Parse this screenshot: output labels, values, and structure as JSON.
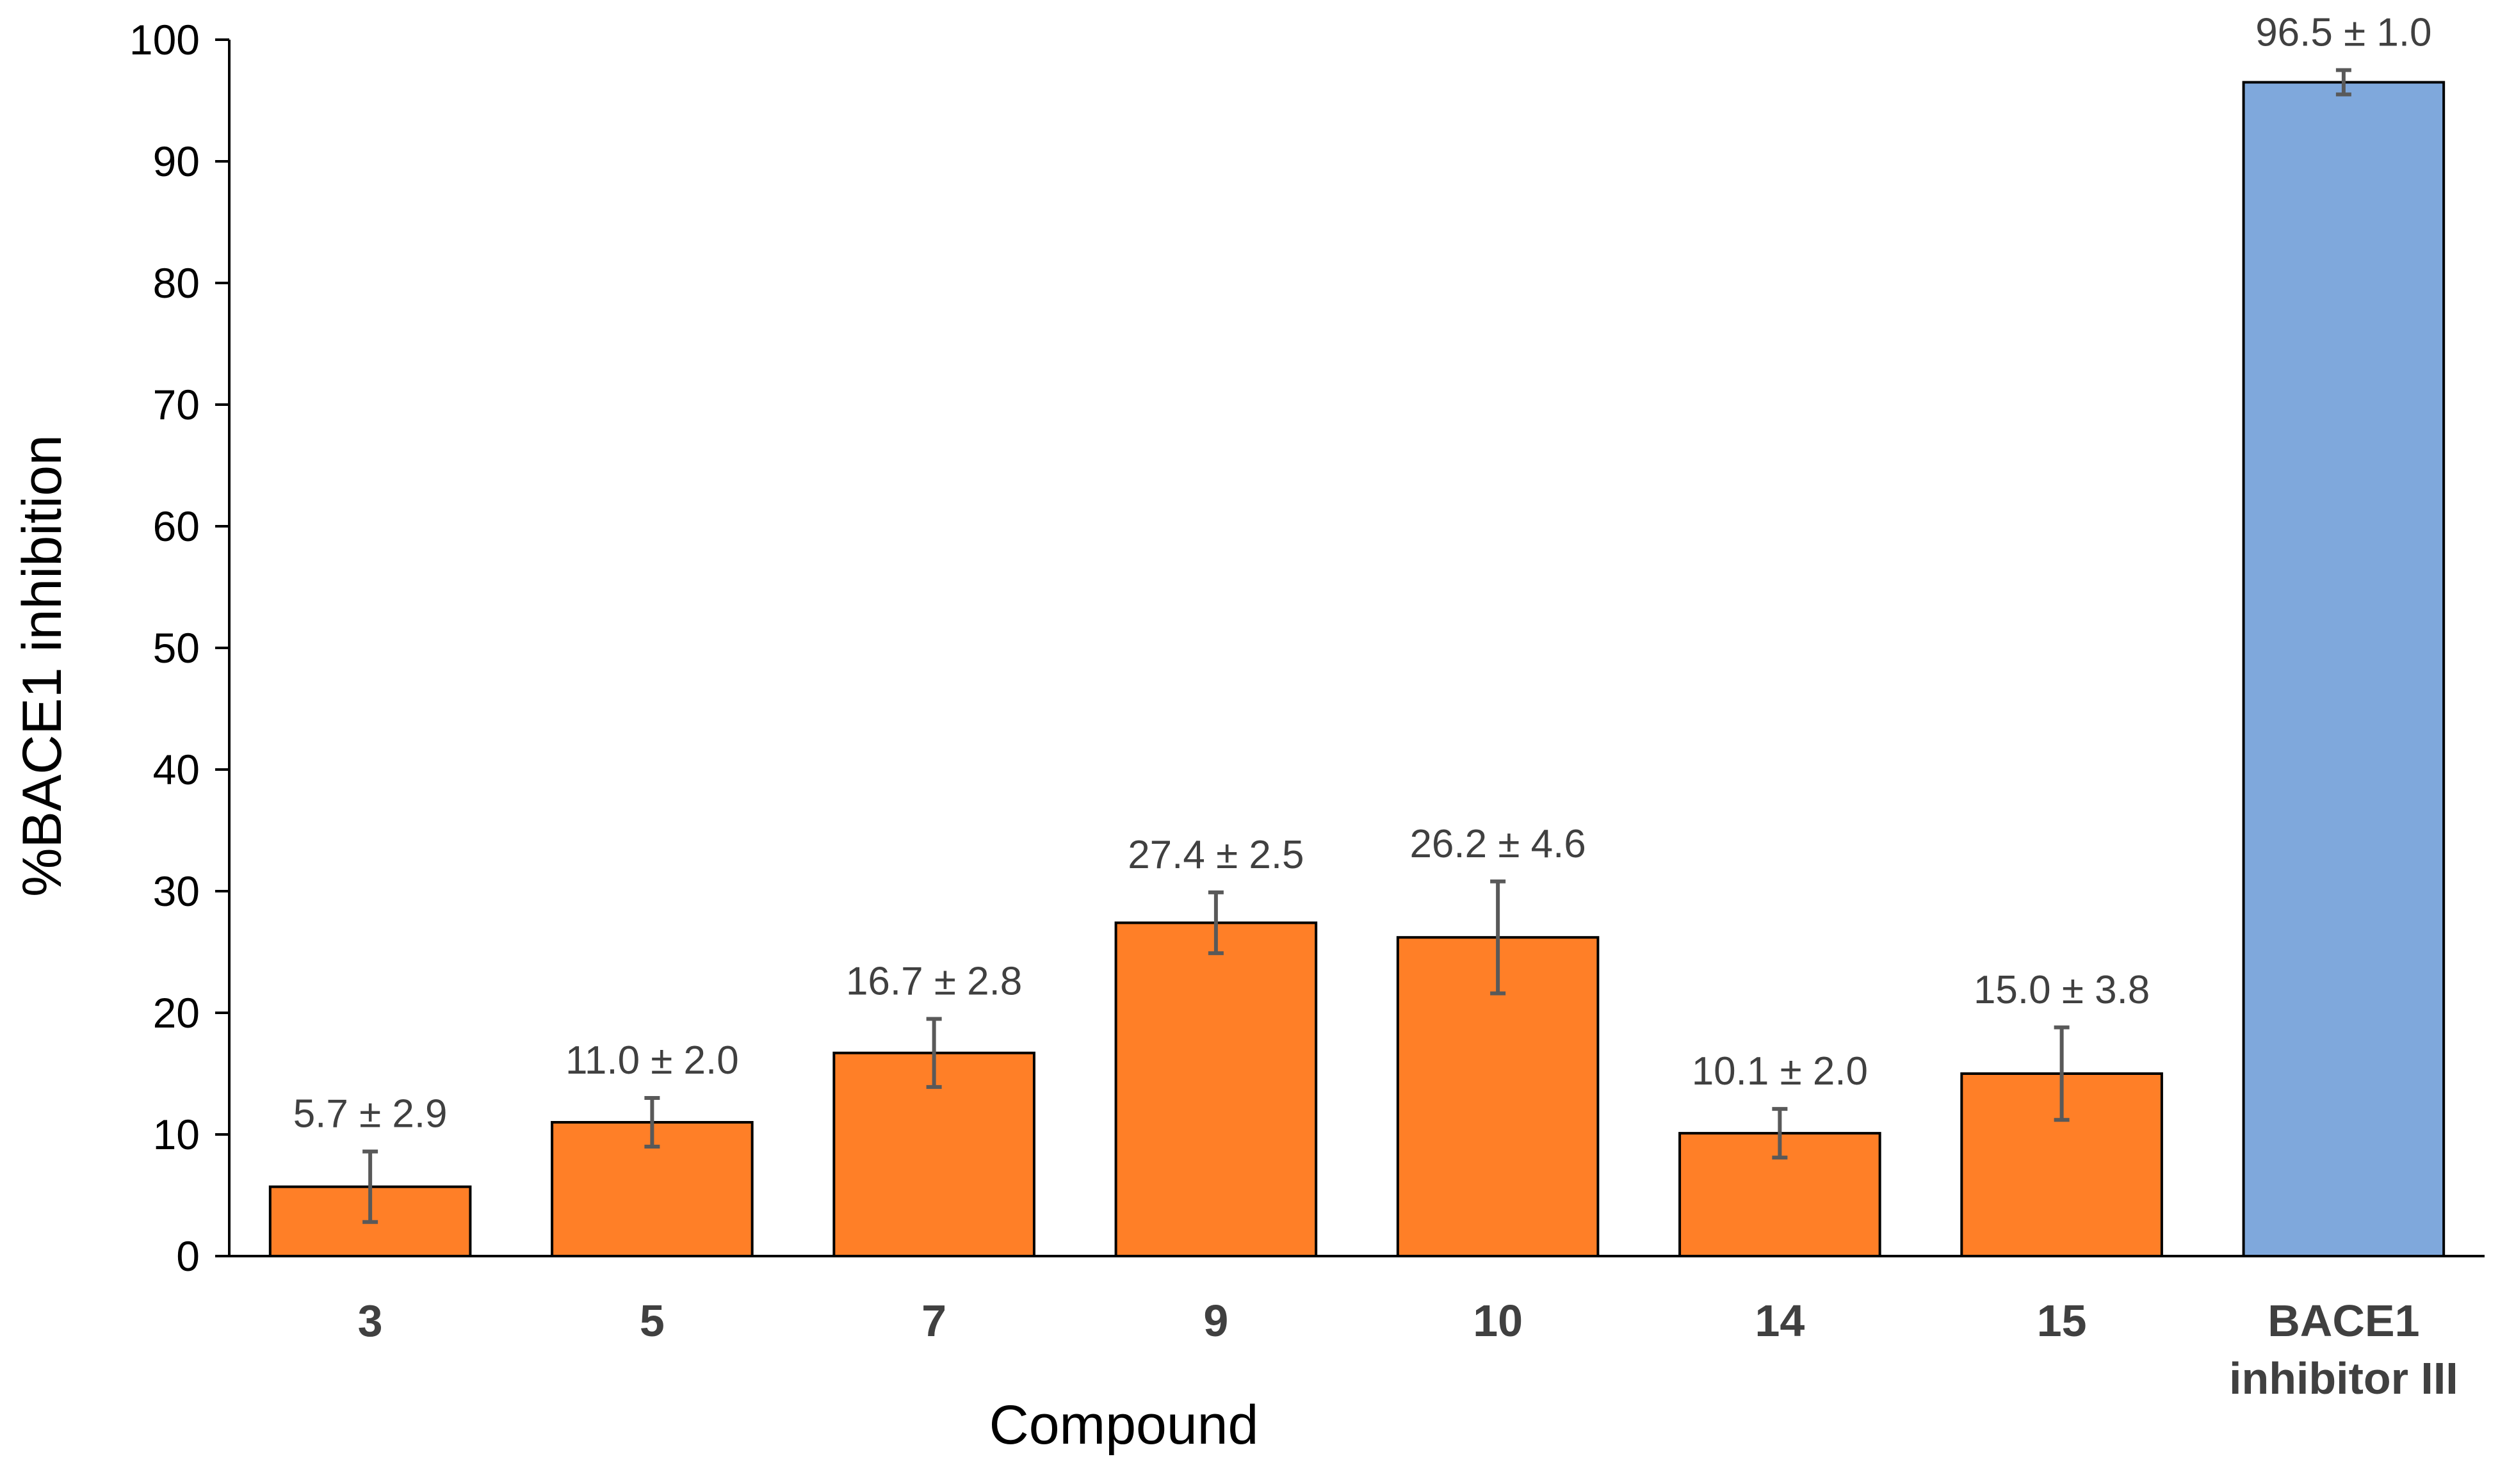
{
  "chart_data": {
    "type": "bar",
    "title": "",
    "xlabel": "Compound",
    "ylabel": "%BACE1 inhibition",
    "ylim": [
      0,
      100
    ],
    "yticks": [
      0,
      10,
      20,
      30,
      40,
      50,
      60,
      70,
      80,
      90,
      100
    ],
    "grid": false,
    "legend": "none",
    "categories": [
      [
        "3"
      ],
      [
        "5"
      ],
      [
        "7"
      ],
      [
        "9"
      ],
      [
        "10"
      ],
      [
        "14"
      ],
      [
        "15"
      ],
      [
        "BACE1",
        "inhibitor III"
      ]
    ],
    "values": [
      5.7,
      11.0,
      16.7,
      27.4,
      26.2,
      10.1,
      15.0,
      96.5
    ],
    "errors": [
      2.9,
      2.0,
      2.8,
      2.5,
      4.6,
      2.0,
      3.8,
      1.0
    ],
    "data_labels": [
      "5.7 ± 2.9",
      "11.0 ± 2.0",
      "16.7 ± 2.8",
      "27.4 ± 2.5",
      "26.2 ± 4.6",
      "10.1 ± 2.0",
      "15.0 ± 3.8",
      "96.5 ± 1.0"
    ],
    "bar_colors": [
      "#FF7F27",
      "#FF7F27",
      "#FF7F27",
      "#FF7F27",
      "#FF7F27",
      "#FF7F27",
      "#FF7F27",
      "#7FA8DC"
    ],
    "bar_edge_color": "#000000",
    "error_bar_color": "#595959",
    "axis_color": "#000000"
  }
}
